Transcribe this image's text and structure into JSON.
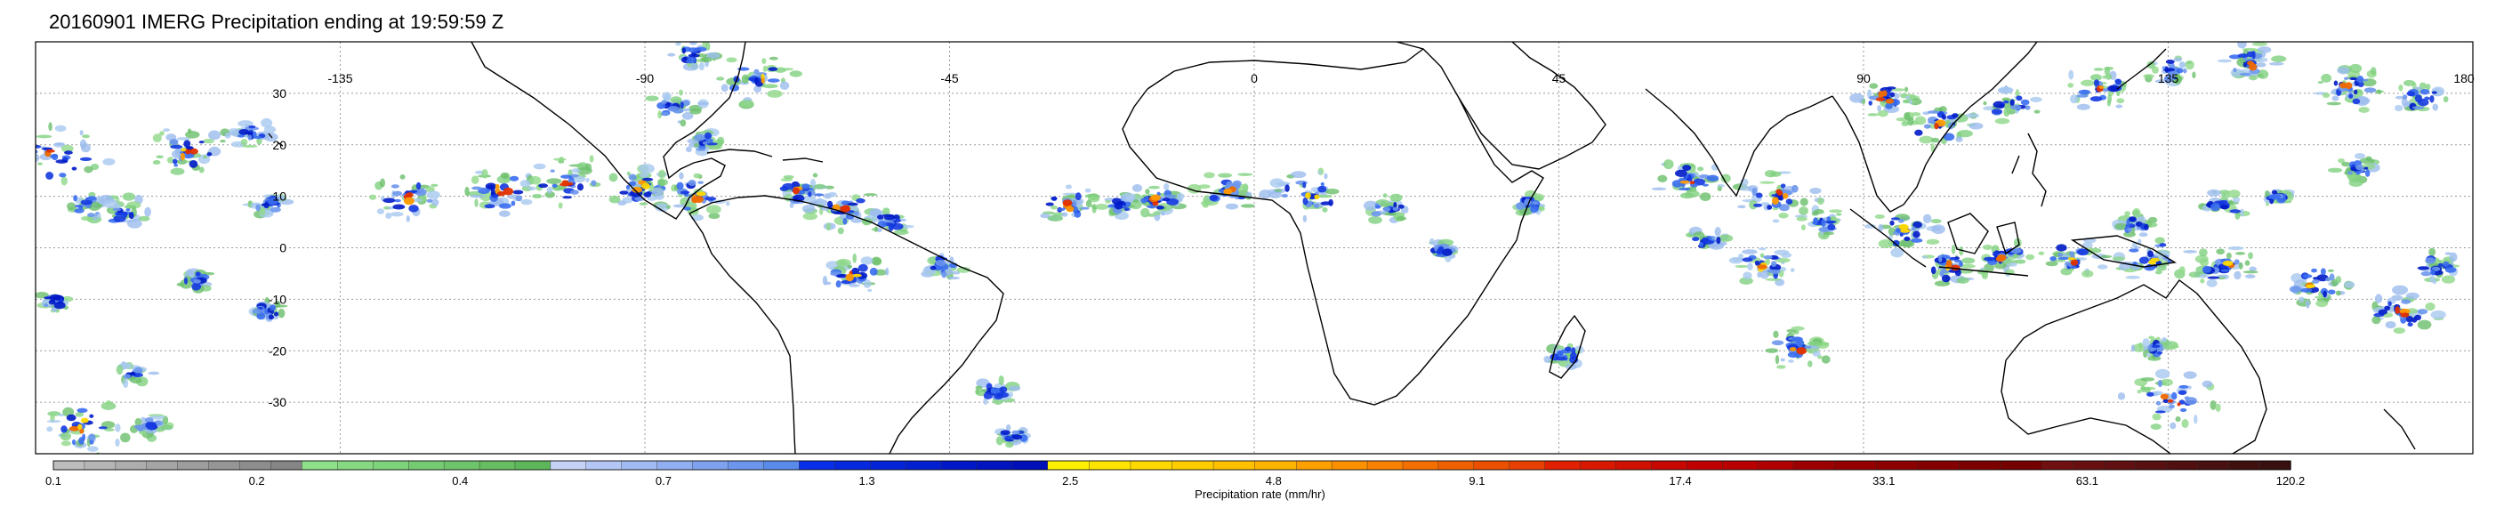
{
  "title": "20160901 IMERG Precipitation ending at 19:59:59 Z",
  "map": {
    "lon_range": [
      -180,
      180
    ],
    "lat_range": [
      -40,
      40
    ],
    "gridlines": true,
    "lon_labels": [
      "-135",
      "-90",
      "-45",
      "0",
      "45",
      "90",
      "135",
      "180"
    ],
    "lon_values": [
      -135,
      -90,
      -45,
      0,
      45,
      90,
      135,
      180
    ],
    "lat_labels": [
      "30",
      "20",
      "10",
      "0",
      "-10",
      "-20",
      "-30"
    ],
    "lat_values": [
      30,
      20,
      10,
      0,
      -10,
      -20,
      -30
    ]
  },
  "colorbar": {
    "label": "Precipitation rate (mm/hr)",
    "tick_labels": [
      "0.1",
      "0.2",
      "0.4",
      "0.7",
      "1.3",
      "2.5",
      "4.8",
      "9.1",
      "17.4",
      "33.1",
      "63.1",
      "120.2"
    ],
    "segment_groups": [
      [
        "#bdbdbd",
        "#b5b5b5",
        "#adadad",
        "#a5a5a5",
        "#9d9d9d",
        "#959595",
        "#8d8d8d",
        "#858585"
      ],
      [
        "#8ee08a",
        "#86d982",
        "#7ed27a",
        "#76cb72",
        "#6ec46a",
        "#66bd62",
        "#5eb65a"
      ],
      [
        "#c6d2f5",
        "#b4c6f4",
        "#a2baf2",
        "#90aef0",
        "#7ea2ee",
        "#6c96ec",
        "#5a8aea"
      ],
      [
        "#0a2fe8",
        "#0629e0",
        "#0424d8",
        "#021fd0",
        "#0019c8",
        "#0014c0",
        "#0010b8"
      ],
      [
        "#fff000",
        "#ffe400",
        "#ffd800",
        "#ffcc00",
        "#ffc000",
        "#ffb400"
      ],
      [
        "#ffa000",
        "#fb9000",
        "#f78000",
        "#f37000",
        "#ef6000",
        "#eb5000",
        "#e74000"
      ],
      [
        "#e02000",
        "#d81800",
        "#d01000",
        "#c80800",
        "#c00000",
        "#b80000",
        "#b00000"
      ],
      [
        "#9c0000",
        "#940000",
        "#8c0000",
        "#840000",
        "#7c0000",
        "#740000"
      ],
      [
        "#701010",
        "#681010",
        "#601010",
        "#581010",
        "#501010",
        "#481010",
        "#401010",
        "#381010"
      ]
    ]
  }
}
